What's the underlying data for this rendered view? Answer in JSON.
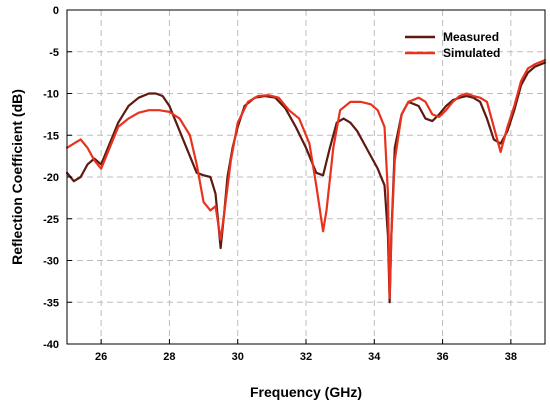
{
  "chart_data": {
    "type": "line",
    "xlabel": "Frequency (GHz)",
    "ylabel": "Reflection Coefficient (dB)",
    "xlim": [
      25,
      39
    ],
    "ylim": [
      -40,
      0
    ],
    "xticks": [
      26,
      28,
      30,
      32,
      34,
      36,
      38
    ],
    "yticks": [
      0,
      -5,
      -10,
      -15,
      -20,
      -25,
      -30,
      -35,
      -40
    ],
    "grid": true,
    "legend_position": "top-right",
    "series": [
      {
        "name": "Measured",
        "color": "#5c1a10",
        "x": [
          25.0,
          25.2,
          25.4,
          25.6,
          25.8,
          26.0,
          26.2,
          26.5,
          26.8,
          27.1,
          27.4,
          27.6,
          27.8,
          28.0,
          28.2,
          28.5,
          28.8,
          29.0,
          29.2,
          29.35,
          29.5,
          29.6,
          29.7,
          29.85,
          30.0,
          30.2,
          30.5,
          30.8,
          31.1,
          31.4,
          31.7,
          32.0,
          32.3,
          32.5,
          32.7,
          32.9,
          33.1,
          33.3,
          33.5,
          33.7,
          33.9,
          34.1,
          34.3,
          34.4,
          34.45,
          34.5,
          34.6,
          34.8,
          35.0,
          35.3,
          35.5,
          35.7,
          35.9,
          36.1,
          36.3,
          36.5,
          36.7,
          36.9,
          37.1,
          37.3,
          37.5,
          37.7,
          37.9,
          38.1,
          38.3,
          38.5,
          38.7,
          39.0
        ],
        "y": [
          -19.5,
          -20.5,
          -20.0,
          -18.5,
          -17.8,
          -18.5,
          -16.5,
          -13.5,
          -11.5,
          -10.5,
          -10.0,
          -10.0,
          -10.3,
          -11.5,
          -13.5,
          -16.5,
          -19.5,
          -19.8,
          -20.0,
          -22.0,
          -28.5,
          -24.5,
          -20.0,
          -16.5,
          -14.0,
          -11.5,
          -10.5,
          -10.3,
          -10.5,
          -11.8,
          -14.0,
          -16.5,
          -19.5,
          -19.8,
          -16.5,
          -13.5,
          -13.0,
          -13.5,
          -14.5,
          -16.0,
          -17.5,
          -19.0,
          -21.0,
          -27.0,
          -35.0,
          -27.0,
          -16.5,
          -12.5,
          -11.0,
          -11.5,
          -13.0,
          -13.3,
          -12.5,
          -11.5,
          -10.8,
          -10.5,
          -10.3,
          -10.5,
          -11.0,
          -13.0,
          -15.5,
          -16.0,
          -14.5,
          -12.0,
          -9.0,
          -7.5,
          -6.8,
          -6.3
        ]
      },
      {
        "name": "Simulated",
        "color": "#e8321e",
        "x": [
          25.0,
          25.2,
          25.4,
          25.6,
          25.8,
          26.0,
          26.2,
          26.5,
          26.8,
          27.1,
          27.4,
          27.7,
          28.0,
          28.3,
          28.6,
          28.8,
          29.0,
          29.2,
          29.35,
          29.5,
          29.6,
          29.8,
          30.0,
          30.3,
          30.6,
          30.9,
          31.2,
          31.5,
          31.8,
          32.1,
          32.3,
          32.5,
          32.6,
          32.8,
          33.0,
          33.3,
          33.6,
          33.9,
          34.1,
          34.3,
          34.4,
          34.45,
          34.5,
          34.6,
          34.8,
          35.0,
          35.3,
          35.5,
          35.7,
          35.9,
          36.1,
          36.3,
          36.5,
          36.7,
          36.9,
          37.1,
          37.3,
          37.5,
          37.7,
          37.9,
          38.1,
          38.3,
          38.5,
          38.7,
          39.0
        ],
        "y": [
          -16.5,
          -16.0,
          -15.5,
          -16.5,
          -18.0,
          -19.0,
          -17.0,
          -14.0,
          -13.0,
          -12.3,
          -12.0,
          -12.0,
          -12.2,
          -13.0,
          -15.0,
          -18.5,
          -23.0,
          -24.0,
          -23.5,
          -27.5,
          -24.5,
          -18.0,
          -13.5,
          -11.0,
          -10.3,
          -10.2,
          -10.5,
          -12.0,
          -13.0,
          -16.0,
          -21.0,
          -26.5,
          -24.0,
          -16.5,
          -12.0,
          -11.0,
          -11.0,
          -11.3,
          -12.0,
          -14.0,
          -22.0,
          -34.5,
          -27.0,
          -18.0,
          -12.5,
          -11.0,
          -10.5,
          -11.0,
          -12.5,
          -12.8,
          -12.0,
          -11.0,
          -10.3,
          -10.0,
          -10.3,
          -10.5,
          -11.0,
          -14.0,
          -17.0,
          -14.0,
          -11.5,
          -8.5,
          -7.0,
          -6.5,
          -6.0
        ]
      }
    ]
  }
}
